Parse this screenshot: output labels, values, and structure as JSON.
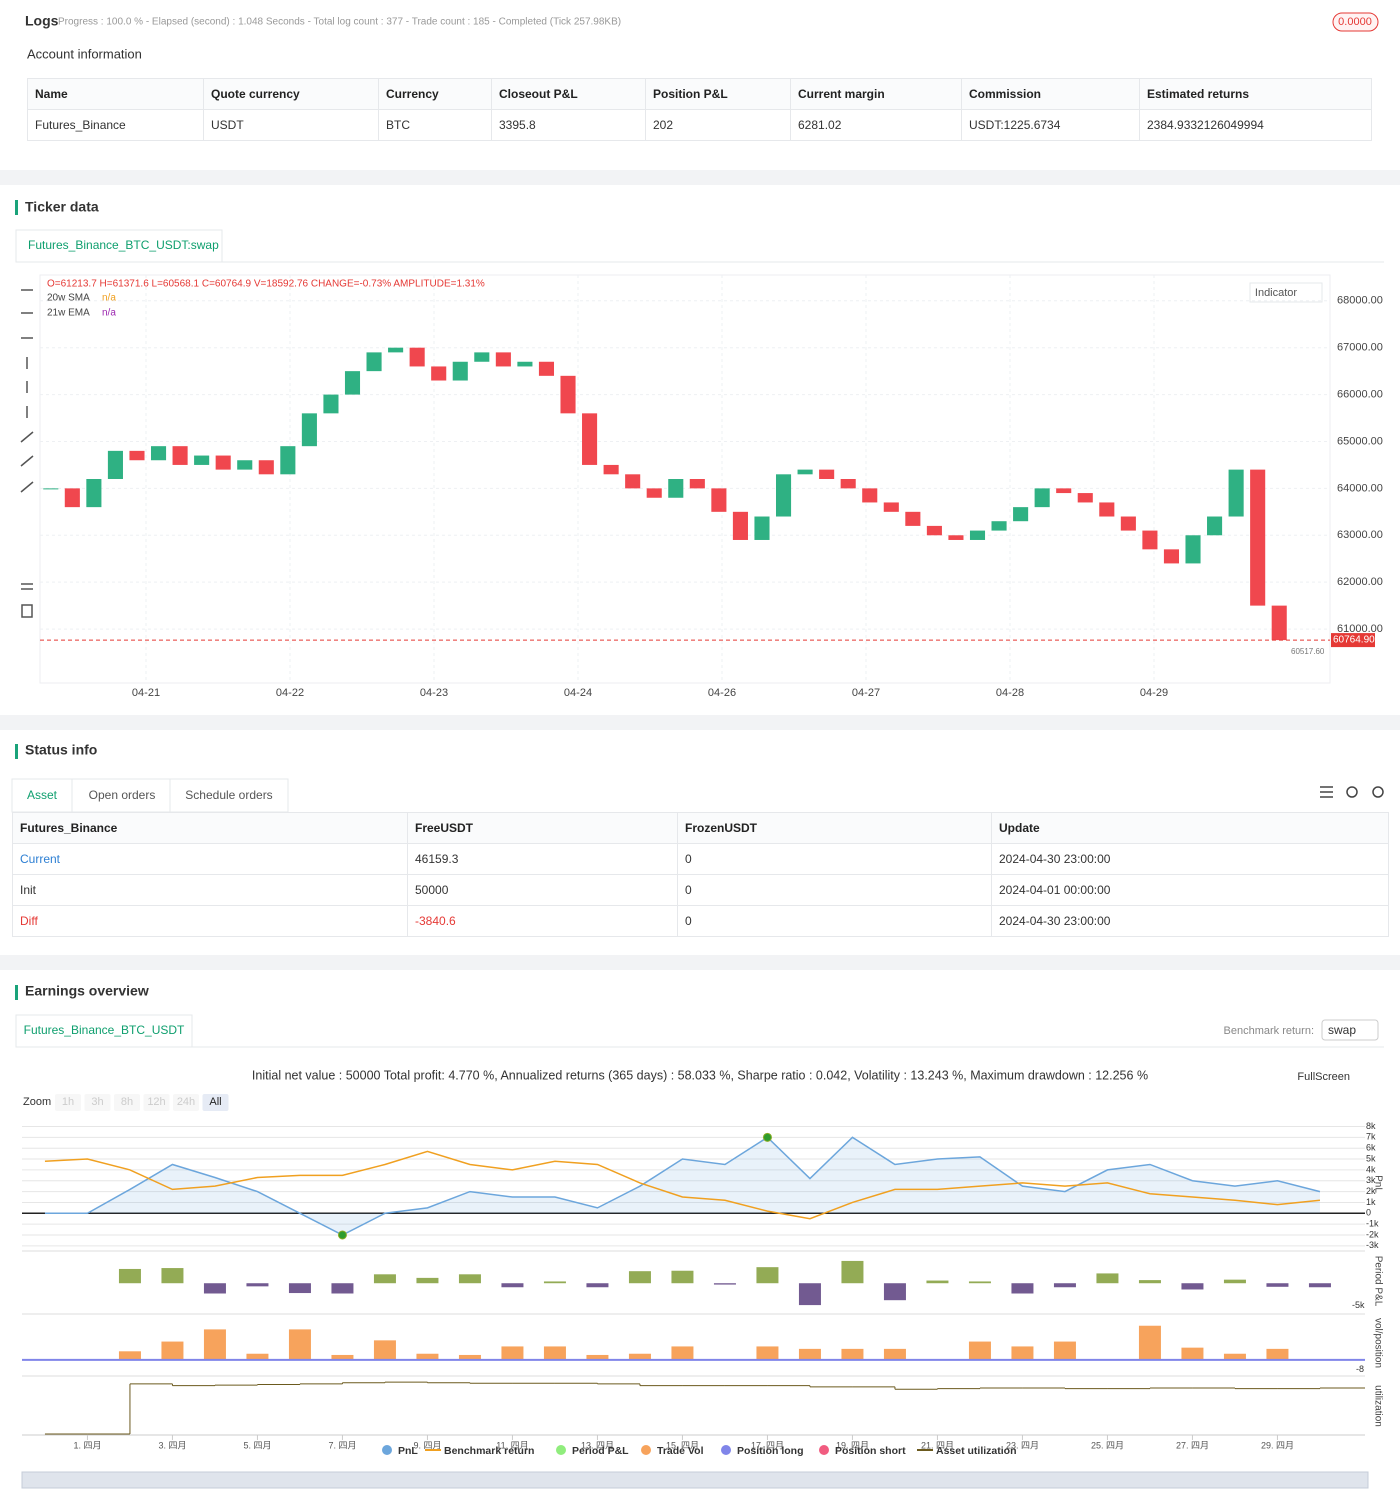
{
  "logs": {
    "title": "Logs",
    "progress": "Progress : 100.0 % - Elapsed (second) : 1.048  Seconds - Total log count : 377 - Trade count : 185 - Completed (Tick 257.98KB)",
    "badge": "0.0000",
    "account_title": "Account information",
    "account_table": {
      "headers": [
        "Name",
        "Quote currency",
        "Currency",
        "Closeout P&L",
        "Position P&L",
        "Current margin",
        "Commission",
        "Estimated returns"
      ],
      "rows": [
        [
          "Futures_Binance",
          "USDT",
          "BTC",
          "3395.8",
          "202",
          "6281.02",
          "USDT:1225.6734",
          "2384.9332126049994"
        ]
      ]
    }
  },
  "ticker": {
    "title": "Ticker data",
    "tab": "Futures_Binance_BTC_USDT:swap",
    "indicator": "Indicator"
  },
  "status": {
    "title": "Status info",
    "tabs": [
      "Asset",
      "Open orders",
      "Schedule orders"
    ],
    "table": {
      "headers": [
        "Futures_Binance",
        "FreeUSDT",
        "FrozenUSDT",
        "Update"
      ],
      "rows": [
        [
          "Current",
          "46159.3",
          "0",
          "2024-04-30 23:00:00"
        ],
        [
          "Init",
          "50000",
          "0",
          "2024-04-01 00:00:00"
        ],
        [
          "Diff",
          "-3840.6",
          "0",
          "2024-04-30 23:00:00"
        ]
      ]
    }
  },
  "earnings": {
    "title": "Earnings overview",
    "tab": "Futures_Binance_BTC_USDT",
    "benchmark_label": "Benchmark return:",
    "benchmark_value": "swap",
    "fullscreen": "FullScreen",
    "zoom": "Zoom",
    "zoom_buttons": [
      "1h",
      "3h",
      "8h",
      "12h",
      "24h",
      "All"
    ]
  },
  "chart_data": [
    {
      "type": "candlestick",
      "ohlc_text": "O=61213.7 H=61371.6 L=60568.1 C=60764.9 V=18592.76 CHANGE=-0.73% AMPLITUDE=1.31%",
      "legend": [
        {
          "name": "20w SMA",
          "value": "n/a"
        },
        {
          "name": "21w EMA",
          "value": "n/a"
        }
      ],
      "categories": [
        "04-21",
        "04-22",
        "04-23",
        "04-24",
        "04-26",
        "04-27",
        "04-28",
        "04-29"
      ],
      "closes": [
        64000,
        63600,
        64200,
        64800,
        64600,
        64900,
        64500,
        64700,
        64400,
        64600,
        64300,
        64900,
        65600,
        66000,
        66500,
        66900,
        67000,
        66600,
        66300,
        66700,
        66900,
        66600,
        66700,
        66400,
        65600,
        64500,
        64300,
        64000,
        63800,
        64200,
        64000,
        63500,
        62900,
        63400,
        64300,
        64400,
        64200,
        64000,
        63700,
        63500,
        63200,
        63000,
        62900,
        63100,
        63300,
        63600,
        64000,
        63900,
        63700,
        63400,
        63100,
        62700,
        62400,
        63000,
        63400,
        64400,
        61500,
        60764.9
      ],
      "ylim": [
        59850,
        68550
      ],
      "yticks": [
        {
          "value": 61000,
          "label": "61000.00"
        },
        {
          "value": 62000,
          "label": "62000.00"
        },
        {
          "value": 63000,
          "label": "63000.00"
        },
        {
          "value": 64000,
          "label": "64000.00"
        },
        {
          "value": 65000,
          "label": "65000.00"
        },
        {
          "value": 66000,
          "label": "66000.00"
        },
        {
          "value": 67000,
          "label": "67000.00"
        },
        {
          "value": 68000,
          "label": "68000.00"
        }
      ],
      "last_price": {
        "value": 60764.9,
        "label": "60764.90"
      },
      "low_label": {
        "value": 60517.6,
        "label": "60517.60"
      },
      "colors": {
        "up": "#2fb183",
        "down": "#f0474e",
        "last": "#e53935"
      },
      "grid": true
    },
    {
      "type": "line",
      "summary": "Initial net value : 50000 Total profit: 4.770 %, Annualized returns (365 days) : 58.033 %, Sharpe ratio : 0.042, Volatility : 13.243 %, Maximum drawdown : 12.256 %",
      "y_title": "PnL",
      "x": [
        0,
        1,
        2,
        3,
        4,
        5,
        6,
        7,
        8,
        9,
        10,
        11,
        12,
        13,
        14,
        15,
        16,
        17,
        18,
        19,
        20,
        21,
        22,
        23,
        24,
        25,
        26,
        27,
        28,
        29,
        30
      ],
      "xlim": [
        -0.54,
        31.06
      ],
      "xticks": [
        {
          "value": 1,
          "label": "1. 四月"
        },
        {
          "value": 3,
          "label": "3. 四月"
        },
        {
          "value": 5,
          "label": "5. 四月"
        },
        {
          "value": 7,
          "label": "7. 四月"
        },
        {
          "value": 9,
          "label": "9. 四月"
        },
        {
          "value": 11,
          "label": "11. 四月"
        },
        {
          "value": 13,
          "label": "13. 四月"
        },
        {
          "value": 15,
          "label": "15. 四月"
        },
        {
          "value": 17,
          "label": "17. 四月"
        },
        {
          "value": 19,
          "label": "19. 四月"
        },
        {
          "value": 21,
          "label": "21. 四月"
        },
        {
          "value": 23,
          "label": "23. 四月"
        },
        {
          "value": 25,
          "label": "25. 四月"
        },
        {
          "value": 27,
          "label": "27. 四月"
        },
        {
          "value": 29,
          "label": "29. 四月"
        }
      ],
      "ylim": [
        -3200,
        8600
      ],
      "yticks": [
        {
          "value": 8000,
          "label": "8k"
        },
        {
          "value": 7000,
          "label": "7k"
        },
        {
          "value": 6000,
          "label": "6k"
        },
        {
          "value": 5000,
          "label": "5k"
        },
        {
          "value": 4000,
          "label": "4k"
        },
        {
          "value": 3000,
          "label": "3k"
        },
        {
          "value": 2000,
          "label": "2k"
        },
        {
          "value": 1000,
          "label": "1k"
        },
        0,
        {
          "value": -1000,
          "label": "-1k"
        },
        {
          "value": -2000,
          "label": "-2k"
        },
        {
          "value": -3000,
          "label": "-3k"
        }
      ],
      "series": [
        {
          "name": "PnL",
          "color": "#6ca6dc",
          "values": [
            0,
            0,
            2200,
            4500,
            3300,
            2000,
            0,
            -2000,
            0,
            500,
            2000,
            1500,
            1500,
            500,
            2500,
            5000,
            4500,
            7000,
            3200,
            7000,
            4500,
            5000,
            5200,
            2500,
            2000,
            4000,
            4500,
            3000,
            2500,
            3000,
            2000
          ]
        },
        {
          "name": "Benchmark return",
          "color": "#f0a020",
          "values": [
            4800,
            5000,
            4000,
            2200,
            2500,
            3300,
            3500,
            3500,
            4500,
            5700,
            4500,
            4000,
            4800,
            4500,
            2800,
            1500,
            1200,
            200,
            -500,
            1000,
            2200,
            2200,
            2500,
            2800,
            2500,
            2800,
            1800,
            1500,
            1200,
            800,
            1200
          ]
        }
      ],
      "period_pnl": {
        "name": "Period P&L",
        "color": "#90ed7d",
        "colors": {
          "positive": "#93ab55",
          "negative": "#725a91"
        },
        "x": [
          2,
          3,
          4,
          5,
          6,
          7,
          8,
          9,
          10,
          11,
          12,
          13,
          14,
          15,
          16,
          17,
          18,
          19,
          20,
          21,
          22,
          23,
          24,
          25,
          26,
          27,
          28,
          29,
          30
        ],
        "values": [
          3200,
          3400,
          -2300,
          -700,
          -2200,
          -2300,
          2000,
          1200,
          2000,
          -900,
          400,
          -900,
          2700,
          2800,
          -300,
          3600,
          -4900,
          5000,
          -3800,
          600,
          400,
          -2300,
          -900,
          2200,
          700,
          -1400,
          800,
          -800,
          -900
        ],
        "ylim": [
          -6000,
          7000
        ],
        "yticks": [
          {
            "value": -5000,
            "label": "-5k"
          }
        ]
      },
      "trade_vol": {
        "name": "Trade Vol",
        "axis_title": "vol/position",
        "color": "#f7a35c",
        "x": [
          2,
          3,
          4,
          5,
          6,
          7,
          8,
          9,
          10,
          11,
          12,
          13,
          14,
          15,
          16,
          17,
          18,
          19,
          20,
          21,
          22,
          23,
          24,
          25,
          26,
          27,
          28,
          29
        ],
        "values": [
          7,
          15,
          25,
          5,
          25,
          4,
          16,
          5,
          4,
          11,
          11,
          4,
          5,
          11,
          0,
          11,
          9,
          9,
          9,
          0,
          15,
          11,
          15,
          0,
          28,
          10,
          5,
          9
        ],
        "ylim": [
          -10,
          36
        ],
        "yticks": [
          -8
        ]
      },
      "position_long": {
        "name": "Position long",
        "color": "#8085e9"
      },
      "position_short": {
        "name": "Position short",
        "color": "#f15c80"
      },
      "utilization": {
        "name": "Asset utilization",
        "axis_title": "utilization",
        "color": "#6b5a1e",
        "x": [
          0,
          1,
          2,
          3,
          4,
          5,
          6,
          7,
          8,
          9,
          10,
          11,
          12,
          13,
          14,
          15,
          16,
          17,
          18,
          19,
          20,
          21,
          22,
          23,
          24,
          25,
          26,
          27,
          28,
          29,
          30
        ],
        "values": [
          0,
          0,
          0.85,
          0.82,
          0.83,
          0.84,
          0.85,
          0.87,
          0.88,
          0.87,
          0.86,
          0.86,
          0.86,
          0.85,
          0.82,
          0.82,
          0.82,
          0.82,
          0.8,
          0.8,
          0.76,
          0.77,
          0.78,
          0.78,
          0.77,
          0.77,
          0.78,
          0.78,
          0.77,
          0.77,
          0.78
        ],
        "ylim": [
          0,
          0.95
        ]
      },
      "grid": true
    }
  ]
}
